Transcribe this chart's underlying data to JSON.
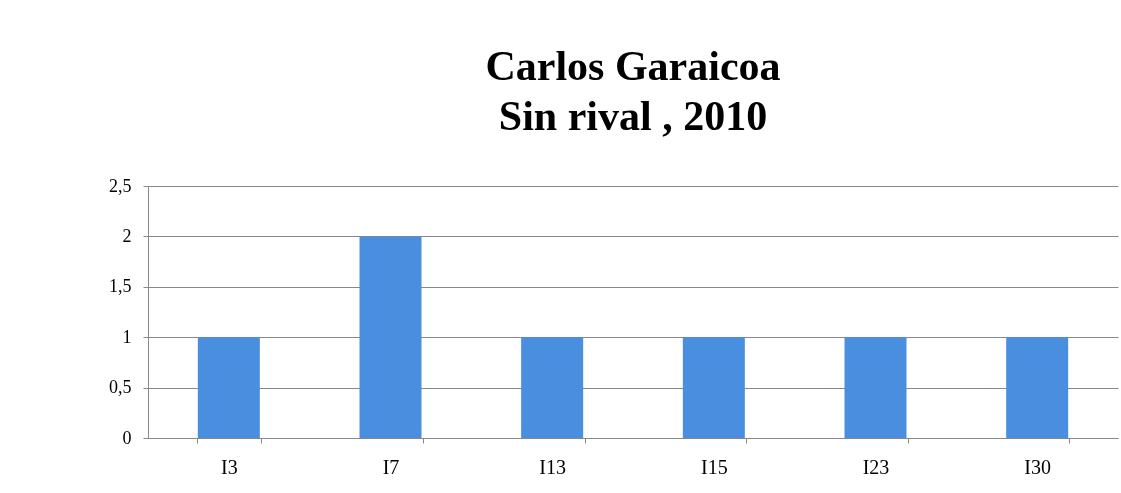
{
  "chart_data": {
    "type": "bar",
    "title": "Carlos Garaicoa\nSin rival , 2010",
    "categories": [
      "I3",
      "I7",
      "I13",
      "I15",
      "I23",
      "I30"
    ],
    "values": [
      1,
      2,
      1,
      1,
      1,
      1
    ],
    "color": "#4a8ee0",
    "ylim": [
      0,
      2.5
    ],
    "yticks": [
      0,
      {
        "value": 0.5,
        "label": "0,5"
      },
      1,
      {
        "value": 1.5,
        "label": "1,5"
      },
      2,
      {
        "value": 2.5,
        "label": "2,5"
      }
    ],
    "grid": "y"
  }
}
